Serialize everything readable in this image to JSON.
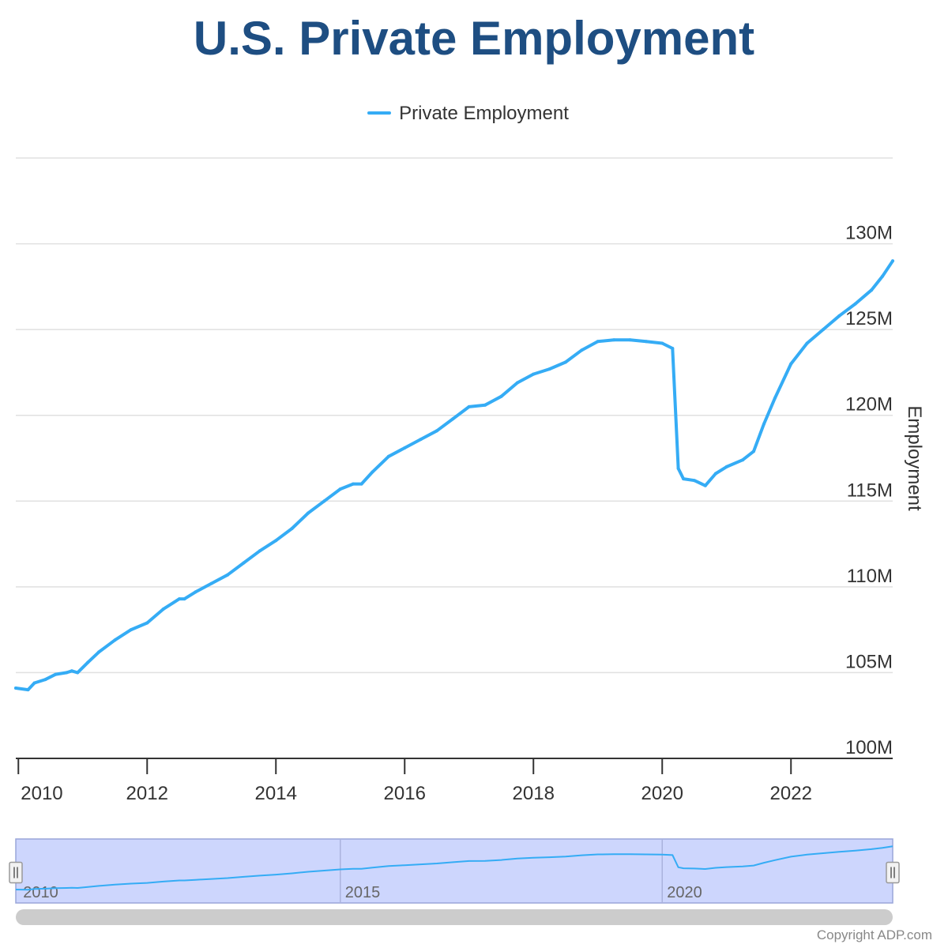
{
  "title": "U.S. Private Employment",
  "legend": {
    "label": "Private Employment"
  },
  "copyright": "Copyright ADP.com",
  "colors": {
    "title": "#1e4e82",
    "series": "#35acf5",
    "grid": "#e0e0e0",
    "navigator_bg": "#cdd6fd"
  },
  "chart_data": {
    "type": "line",
    "title": "U.S. Private Employment",
    "ylabel": "Employment",
    "xlabel": "",
    "ylim": [
      100,
      135
    ],
    "xlim": [
      2009.96,
      2023.58
    ],
    "y_ticks": [
      {
        "value": 100,
        "label": "100M"
      },
      {
        "value": 105,
        "label": "105M"
      },
      {
        "value": 110,
        "label": "110M"
      },
      {
        "value": 115,
        "label": "115M"
      },
      {
        "value": 120,
        "label": "120M"
      },
      {
        "value": 125,
        "label": "125M"
      },
      {
        "value": 130,
        "label": "130M"
      }
    ],
    "x_ticks": [
      {
        "value": 2010,
        "label": "2010"
      },
      {
        "value": 2012,
        "label": "2012"
      },
      {
        "value": 2014,
        "label": "2014"
      },
      {
        "value": 2016,
        "label": "2016"
      },
      {
        "value": 2018,
        "label": "2018"
      },
      {
        "value": 2020,
        "label": "2020"
      },
      {
        "value": 2022,
        "label": "2022"
      }
    ],
    "legend_position": "top-center",
    "grid": true,
    "series": [
      {
        "name": "Private Employment",
        "unit": "millions",
        "points": [
          [
            2009.96,
            104.1
          ],
          [
            2010.15,
            104.0
          ],
          [
            2010.25,
            104.4
          ],
          [
            2010.42,
            104.6
          ],
          [
            2010.58,
            104.9
          ],
          [
            2010.75,
            105.0
          ],
          [
            2010.83,
            105.1
          ],
          [
            2010.92,
            105.0
          ],
          [
            2011.08,
            105.6
          ],
          [
            2011.25,
            106.2
          ],
          [
            2011.5,
            106.9
          ],
          [
            2011.75,
            107.5
          ],
          [
            2012.0,
            107.9
          ],
          [
            2012.25,
            108.7
          ],
          [
            2012.5,
            109.3
          ],
          [
            2012.58,
            109.3
          ],
          [
            2012.75,
            109.7
          ],
          [
            2013.0,
            110.2
          ],
          [
            2013.25,
            110.7
          ],
          [
            2013.5,
            111.4
          ],
          [
            2013.75,
            112.1
          ],
          [
            2014.0,
            112.7
          ],
          [
            2014.25,
            113.4
          ],
          [
            2014.5,
            114.3
          ],
          [
            2014.75,
            115.0
          ],
          [
            2015.0,
            115.7
          ],
          [
            2015.2,
            116.0
          ],
          [
            2015.33,
            116.0
          ],
          [
            2015.5,
            116.7
          ],
          [
            2015.75,
            117.6
          ],
          [
            2016.0,
            118.1
          ],
          [
            2016.25,
            118.6
          ],
          [
            2016.5,
            119.1
          ],
          [
            2016.75,
            119.8
          ],
          [
            2017.0,
            120.5
          ],
          [
            2017.25,
            120.6
          ],
          [
            2017.5,
            121.1
          ],
          [
            2017.75,
            121.9
          ],
          [
            2018.0,
            122.4
          ],
          [
            2018.25,
            122.7
          ],
          [
            2018.5,
            123.1
          ],
          [
            2018.75,
            123.8
          ],
          [
            2019.0,
            124.3
          ],
          [
            2019.25,
            124.4
          ],
          [
            2019.5,
            124.4
          ],
          [
            2019.75,
            124.3
          ],
          [
            2020.0,
            124.2
          ],
          [
            2020.16,
            123.9
          ],
          [
            2020.25,
            116.9
          ],
          [
            2020.33,
            116.3
          ],
          [
            2020.5,
            116.2
          ],
          [
            2020.67,
            115.9
          ],
          [
            2020.83,
            116.6
          ],
          [
            2021.0,
            117.0
          ],
          [
            2021.25,
            117.4
          ],
          [
            2021.42,
            117.9
          ],
          [
            2021.58,
            119.5
          ],
          [
            2021.75,
            121.0
          ],
          [
            2022.0,
            123.0
          ],
          [
            2022.25,
            124.2
          ],
          [
            2022.5,
            125.0
          ],
          [
            2022.75,
            125.8
          ],
          [
            2023.0,
            126.5
          ],
          [
            2023.25,
            127.3
          ],
          [
            2023.42,
            128.1
          ],
          [
            2023.58,
            129.0
          ]
        ]
      }
    ]
  },
  "navigator": {
    "ticks": [
      {
        "value": 2010,
        "label": "2010"
      },
      {
        "value": 2015,
        "label": "2015"
      },
      {
        "value": 2020,
        "label": "2020"
      }
    ],
    "range": [
      2009.96,
      2023.58
    ]
  }
}
